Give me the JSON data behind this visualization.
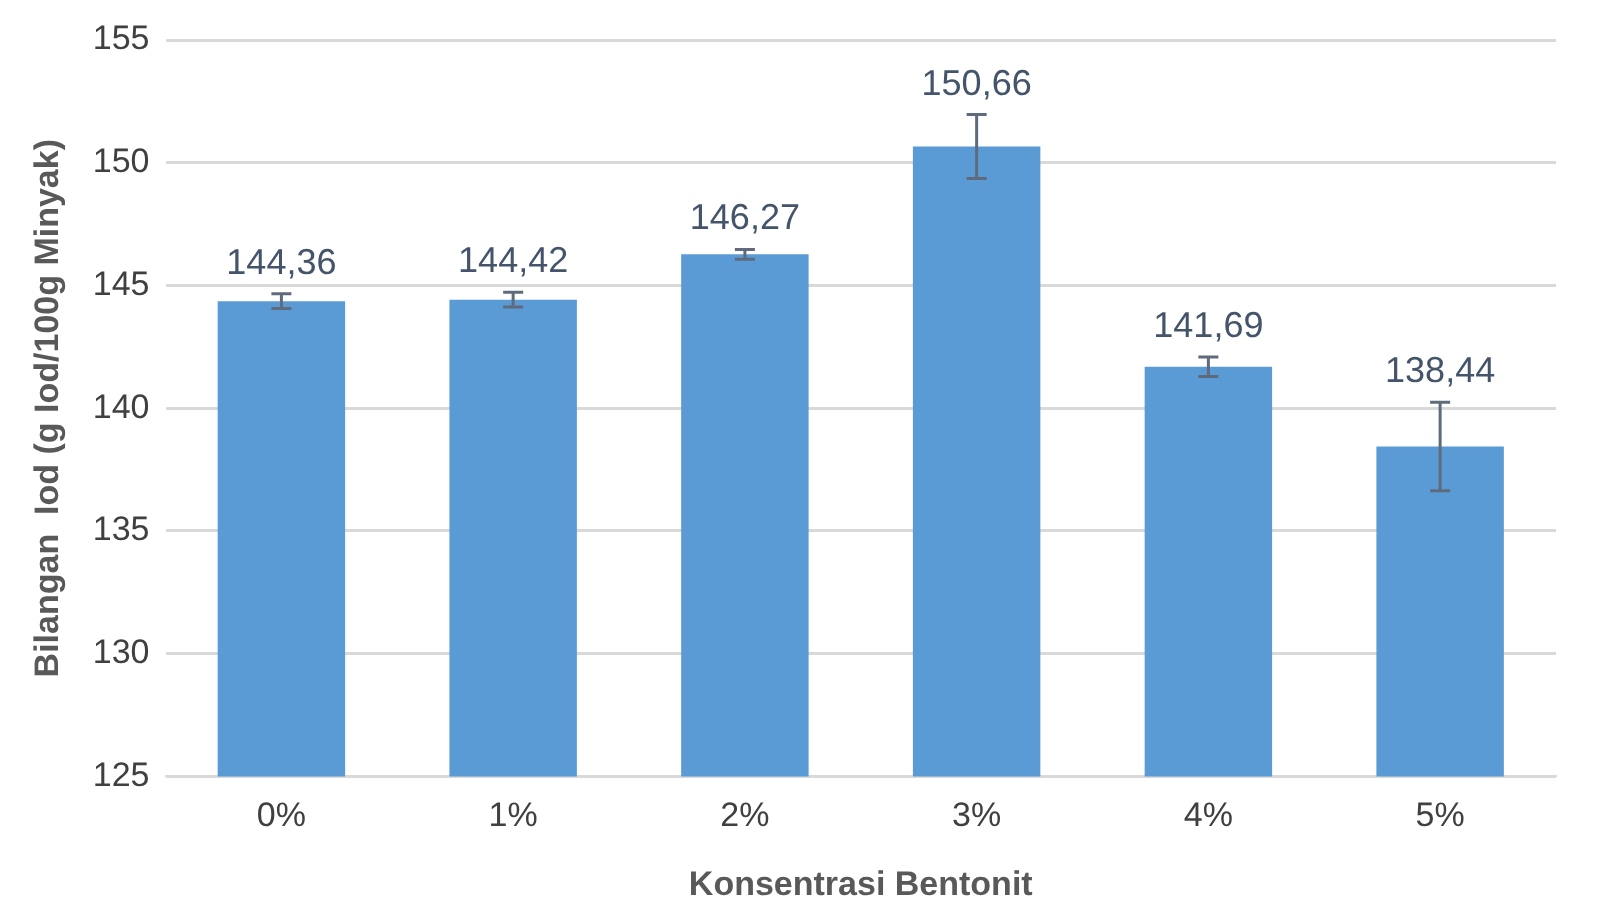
{
  "chart_data": {
    "type": "bar",
    "xlabel": "Konsentrasi Bentonit",
    "ylabel": "Bilangan  Iod (g Iod/100g Minyak)",
    "categories": [
      "0%",
      "1%",
      "2%",
      "3%",
      "4%",
      "5%"
    ],
    "values": [
      144.36,
      144.42,
      146.27,
      150.66,
      141.69,
      138.44
    ],
    "value_labels": [
      "144,36",
      "144,42",
      "146,27",
      "150,66",
      "141,69",
      "138,44"
    ],
    "errors": [
      0.3,
      0.3,
      0.2,
      1.3,
      0.4,
      1.8
    ],
    "color": "#5b9bd5",
    "ylim": [
      125,
      155
    ],
    "yticks": [
      125,
      130,
      135,
      140,
      145,
      150,
      155
    ],
    "grid": "y",
    "legend": false
  }
}
